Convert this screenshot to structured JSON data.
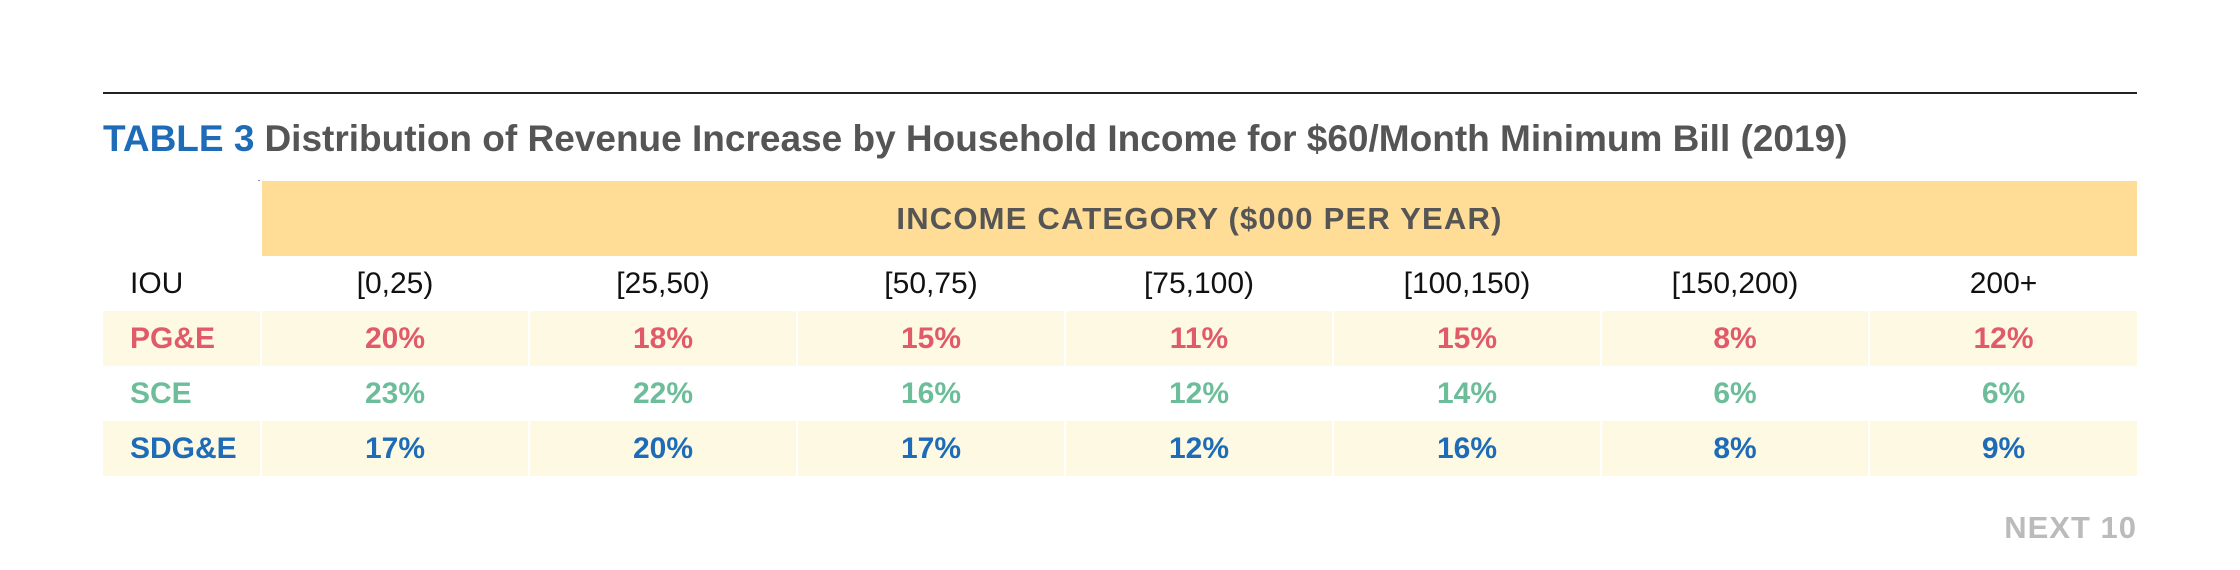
{
  "title_label": "TABLE 3",
  "title": "Distribution of Revenue Increase by Household Income for $60/Month Minimum Bill (2019)",
  "footer": "NEXT 10",
  "colors": {
    "accent": "#1e6bb8",
    "header_band": "#ffdd96",
    "row_tint": "#fdf9e3"
  },
  "chart_data": {
    "type": "table",
    "header_group": "INCOME CATEGORY ($000 PER YEAR)",
    "columns": [
      "IOU",
      "[0,25)",
      "[25,50)",
      "[50,75)",
      "[75,100)",
      "[100,150)",
      "[150,200)",
      "200+"
    ],
    "rows": [
      {
        "label": "PG&E",
        "color": "#e05a6a",
        "values": [
          "20%",
          "18%",
          "15%",
          "11%",
          "15%",
          "8%",
          "12%"
        ]
      },
      {
        "label": "SCE",
        "color": "#6dbd9a",
        "values": [
          "23%",
          "22%",
          "16%",
          "12%",
          "14%",
          "6%",
          "6%"
        ]
      },
      {
        "label": "SDG&E",
        "color": "#1e6bb8",
        "values": [
          "17%",
          "20%",
          "17%",
          "12%",
          "16%",
          "8%",
          "9%"
        ]
      }
    ]
  }
}
